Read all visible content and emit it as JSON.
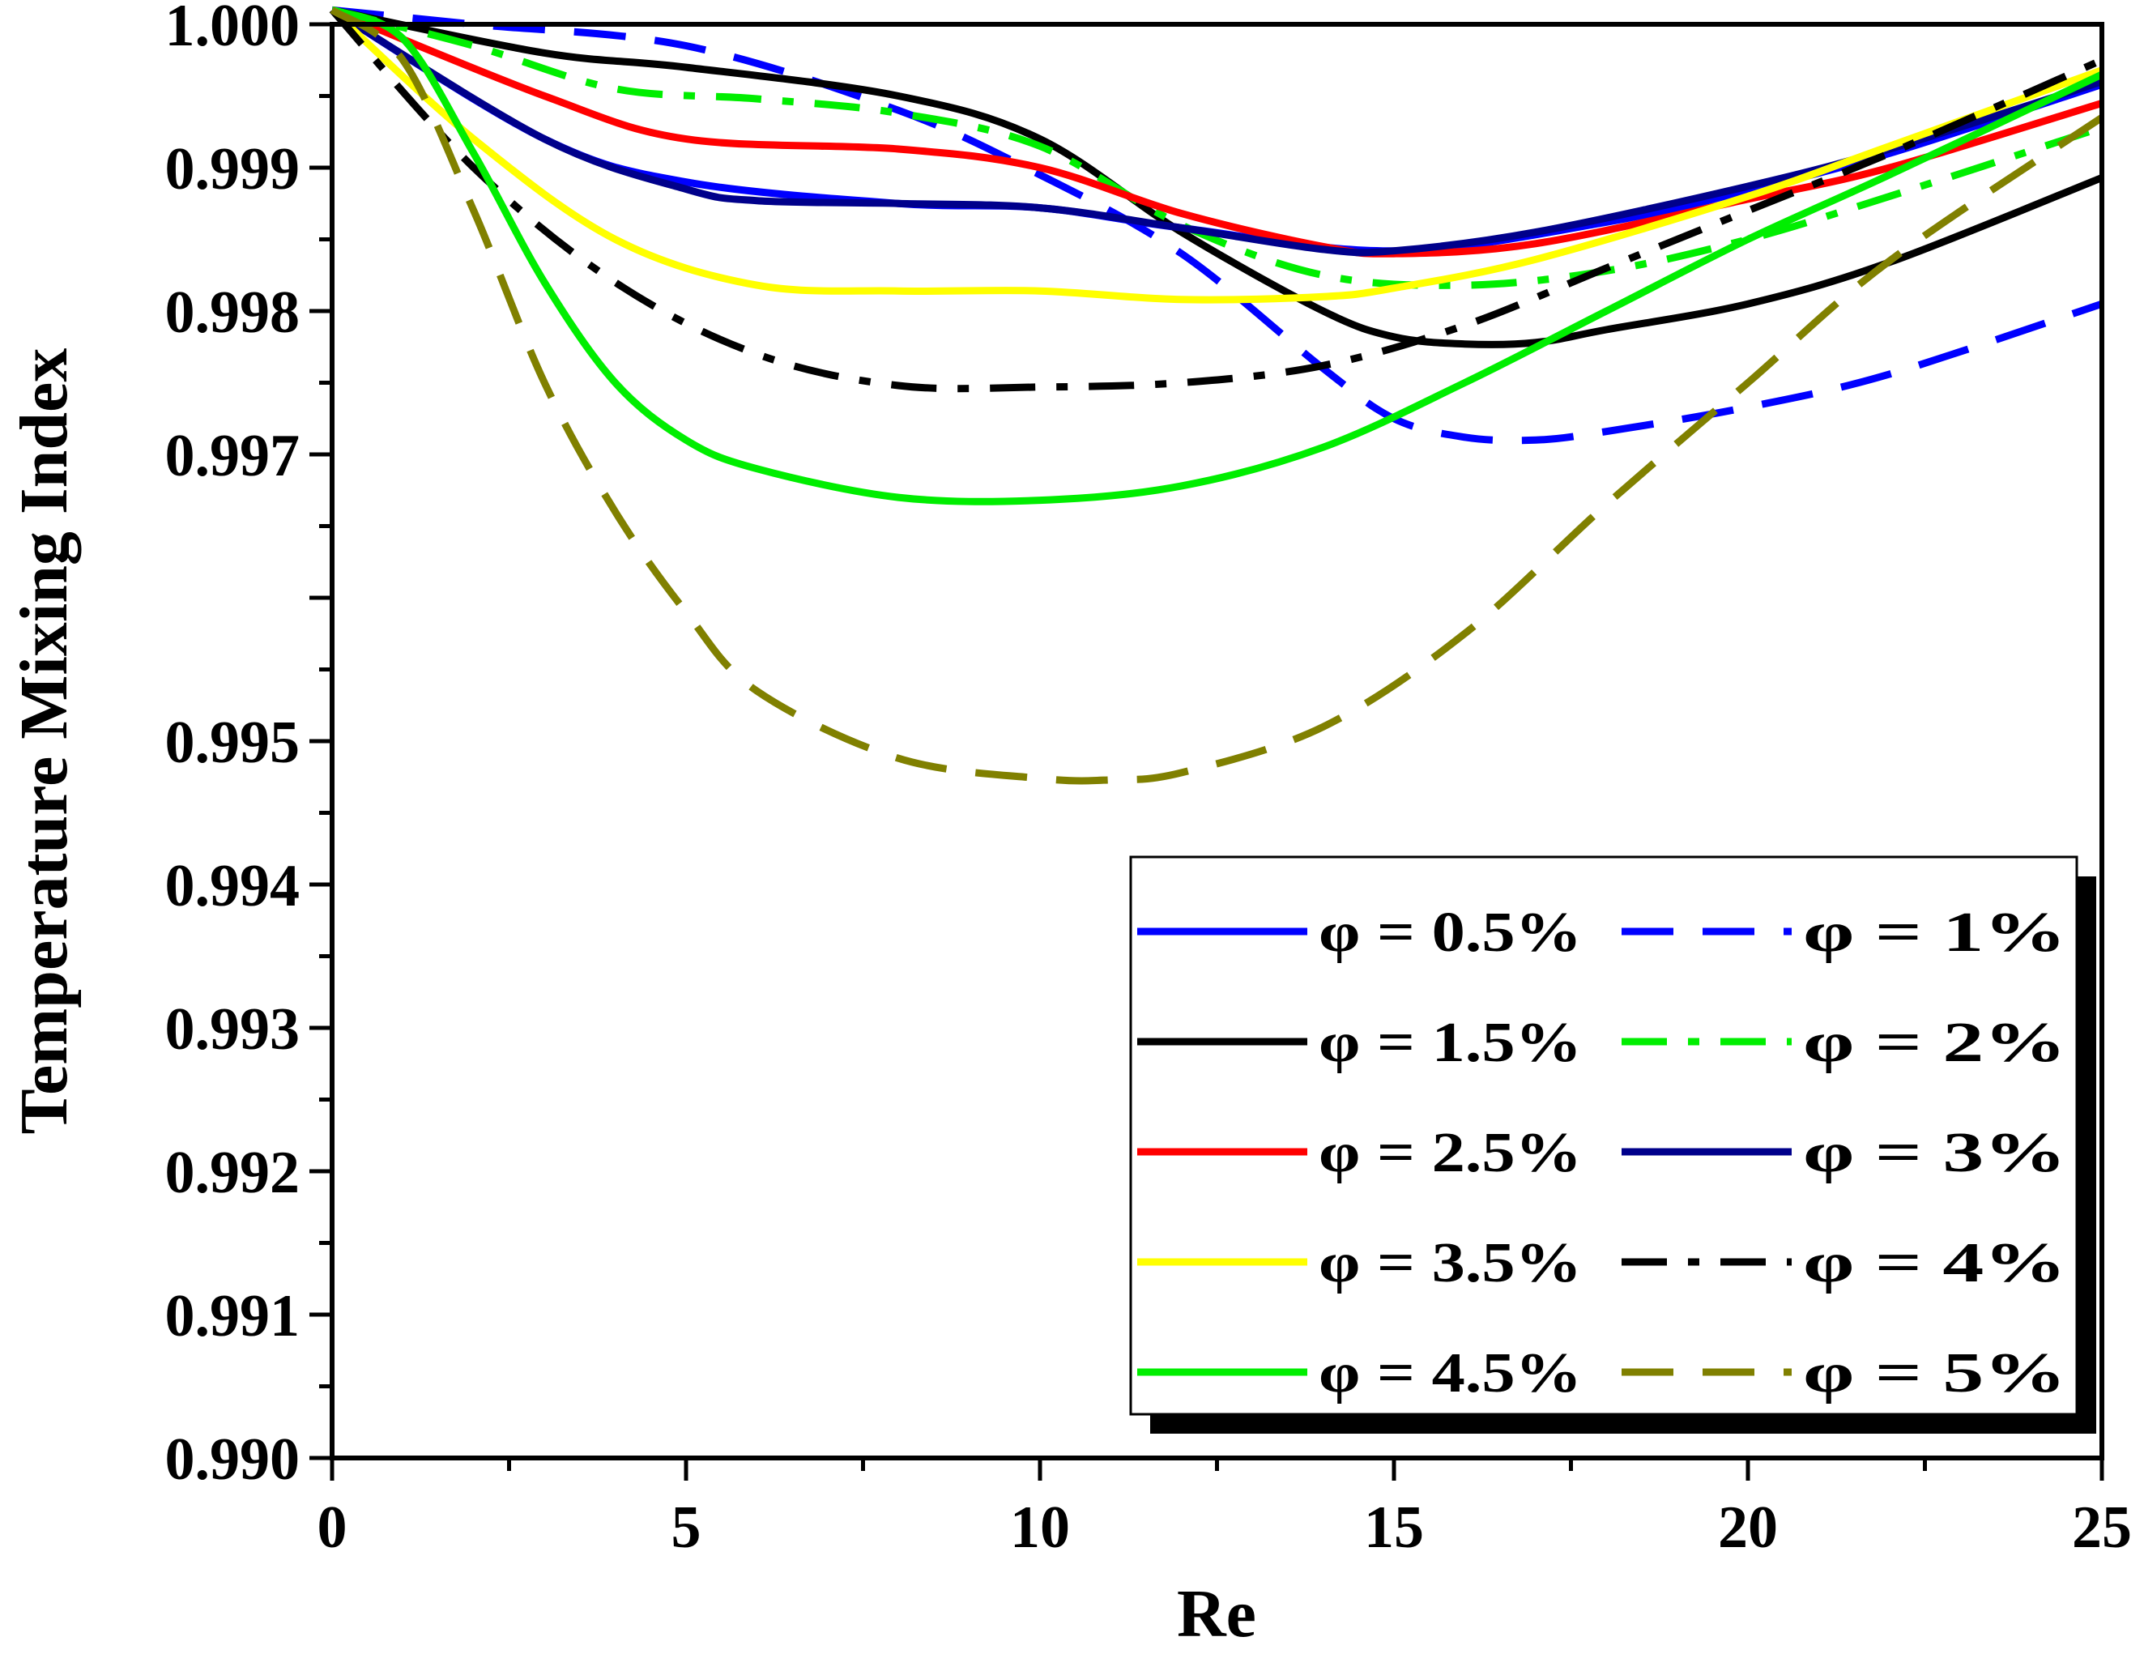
{
  "chart_data": {
    "type": "line",
    "title": "",
    "xlabel": "Re",
    "ylabel": "Temperature Mixing Index",
    "xlim": [
      0,
      25
    ],
    "ylim": [
      0.99,
      1.0
    ],
    "grid": false,
    "legend_position": "bottom-right",
    "x_ticks": [
      0,
      5,
      10,
      15,
      20,
      25
    ],
    "x_tick_labels": [
      "0",
      "5",
      "10",
      "15",
      "20",
      "25"
    ],
    "y_ticks": [
      0.99,
      0.991,
      0.992,
      0.993,
      0.994,
      0.995,
      0.997,
      0.998,
      0.999,
      1.0
    ],
    "y_tick_labels": [
      "0.990",
      "0.991",
      "0.992",
      "0.993",
      "0.994",
      "0.995",
      "0.997",
      "0.998",
      "0.999",
      "1.000"
    ],
    "series": [
      {
        "name": "φ = 0.5%",
        "color": "#0000ff",
        "dash": "solid",
        "x": [
          0,
          3,
          5,
          8,
          10,
          12,
          15,
          18,
          20,
          22,
          25
        ],
        "y": [
          1.0001,
          0.9992,
          0.9989,
          0.99875,
          0.99872,
          0.99858,
          0.99842,
          0.99862,
          0.99884,
          0.9991,
          0.99958
        ]
      },
      {
        "name": "φ = 1%",
        "color": "#0000ff",
        "dash": "dash",
        "x": [
          0,
          2,
          5,
          8,
          10,
          12,
          14,
          15,
          16,
          17,
          18,
          20,
          22,
          25
        ],
        "y": [
          1.0001,
          1.0,
          0.99985,
          0.9994,
          0.99895,
          0.9984,
          0.9976,
          0.99725,
          0.99712,
          0.9971,
          0.99716,
          0.99733,
          0.99756,
          0.99805
        ]
      },
      {
        "name": "φ = 1.5%",
        "color": "#000000",
        "dash": "solid",
        "x": [
          0,
          3,
          5,
          8,
          10,
          12,
          14,
          15,
          16,
          17,
          18,
          20,
          22,
          25
        ],
        "y": [
          1.0001,
          0.9998,
          0.9997,
          0.9995,
          0.9992,
          0.99855,
          0.998,
          0.99782,
          0.99777,
          0.99778,
          0.99787,
          0.99805,
          0.99834,
          0.99893
        ]
      },
      {
        "name": "φ = 2%",
        "color": "#00ee00",
        "dash": "dashdot",
        "x": [
          0,
          2,
          4,
          6,
          8,
          10,
          12,
          14,
          16,
          18,
          20,
          22,
          25
        ],
        "y": [
          1.0001,
          0.99985,
          0.99955,
          0.99948,
          0.99938,
          0.99915,
          0.9986,
          0.99825,
          0.99818,
          0.99828,
          0.9985,
          0.9988,
          0.99928
        ]
      },
      {
        "name": "φ = 2.5%",
        "color": "#ff0000",
        "dash": "solid",
        "x": [
          0,
          3,
          5,
          8,
          10,
          12,
          14,
          15,
          17,
          20,
          22,
          25
        ],
        "y": [
          1.0001,
          0.9995,
          0.9992,
          0.99913,
          0.999,
          0.99868,
          0.99845,
          0.9984,
          0.99847,
          0.99878,
          0.999,
          0.99945
        ]
      },
      {
        "name": "φ = 3%",
        "color": "#00008b",
        "dash": "solid",
        "x": [
          0,
          3,
          5,
          6,
          8,
          10,
          12,
          14,
          15,
          17,
          20,
          22,
          25
        ],
        "y": [
          1.0001,
          0.9992,
          0.99885,
          0.99877,
          0.99875,
          0.99872,
          0.99858,
          0.99843,
          0.99842,
          0.99855,
          0.99887,
          0.99913,
          0.9996
        ]
      },
      {
        "name": "φ = 3.5%",
        "color": "#ffff00",
        "dash": "solid",
        "x": [
          0,
          2,
          4,
          6,
          8,
          10,
          12,
          14,
          15,
          17,
          20,
          22,
          25
        ],
        "y": [
          1.0001,
          0.9992,
          0.9985,
          0.99818,
          0.99814,
          0.99814,
          0.99808,
          0.9981,
          0.99816,
          0.99836,
          0.9988,
          0.99915,
          0.99968
        ]
      },
      {
        "name": "φ = 4%",
        "color": "#000000",
        "dash": "dashdot",
        "x": [
          0,
          2,
          4,
          6,
          8,
          10,
          12,
          14,
          16,
          18,
          20,
          22,
          25
        ],
        "y": [
          1.0001,
          0.999,
          0.9982,
          0.9977,
          0.99748,
          0.99747,
          0.9975,
          0.99762,
          0.9979,
          0.9983,
          0.9987,
          0.9991,
          0.99975
        ]
      },
      {
        "name": "φ = 4.5%",
        "color": "#00ee00",
        "dash": "solid",
        "x": [
          0,
          1,
          2,
          3,
          4,
          5,
          6,
          8,
          10,
          12,
          14,
          16,
          18,
          20,
          22,
          25
        ],
        "y": [
          1.0001,
          0.9999,
          0.9991,
          0.9982,
          0.9975,
          0.9971,
          0.9969,
          0.9967,
          0.99668,
          0.99678,
          0.99705,
          0.9975,
          0.998,
          0.9985,
          0.99895,
          0.99965
        ]
      },
      {
        "name": "φ = 5%",
        "color": "#808000",
        "dash": "dash",
        "x": [
          0,
          1,
          2,
          3,
          4,
          5,
          6,
          8,
          10,
          11,
          12,
          14,
          16,
          18,
          20,
          22,
          25
        ],
        "y": [
          1.0001,
          0.99975,
          0.9987,
          0.9975,
          0.9966,
          0.9959,
          0.99535,
          0.99488,
          0.99474,
          0.99473,
          0.99478,
          0.9951,
          0.99575,
          0.99665,
          0.9975,
          0.99835,
          0.99935
        ]
      }
    ]
  }
}
